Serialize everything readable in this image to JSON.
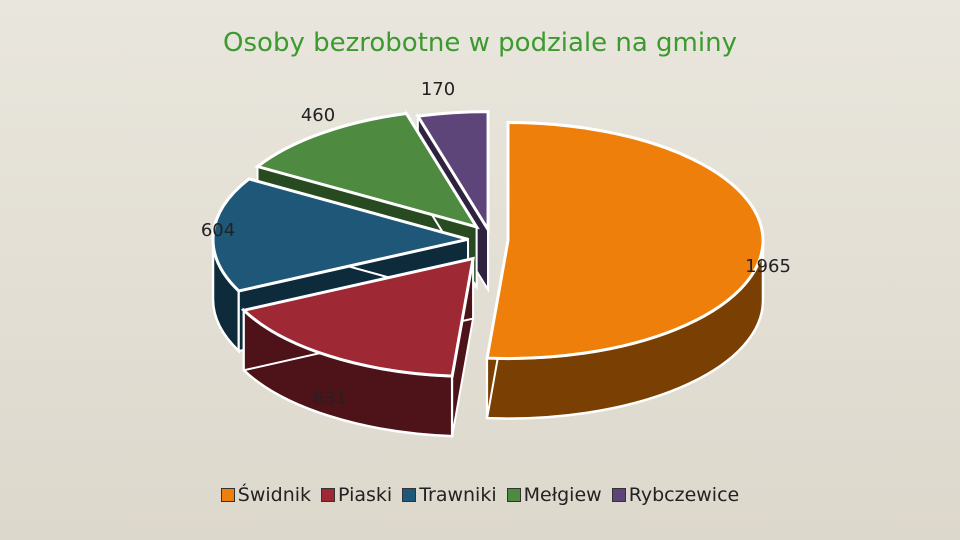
{
  "chart_data": {
    "type": "pie",
    "title": "Osoby bezrobotne w podziale na gminy",
    "categories": [
      "Świdnik",
      "Piaski",
      "Trawniki",
      "Mełgiew",
      "Rybczewice"
    ],
    "values": [
      1965,
      631,
      604,
      460,
      170
    ],
    "data_labels": [
      "1965",
      "631",
      "604",
      "460",
      "170"
    ],
    "colors": [
      "#ee7f0a",
      "#9f2835",
      "#1e5778",
      "#4e8a40",
      "#5e4579"
    ],
    "side_colors": [
      "#7a3f02",
      "#4e1219",
      "#0e2b3c",
      "#284a20",
      "#2f2140"
    ],
    "legend_position": "bottom",
    "style": "3d-exploded"
  }
}
